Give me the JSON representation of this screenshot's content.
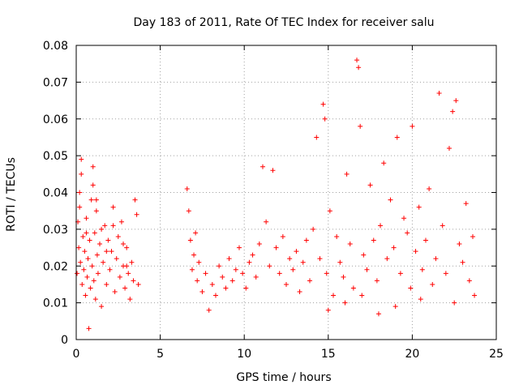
{
  "chart_data": {
    "type": "scatter",
    "title": "Day 183 of 2011, Rate Of TEC Index for receiver salu",
    "xlabel": "GPS time / hours",
    "ylabel": "ROTI / TECUs",
    "xlim": [
      0,
      25
    ],
    "ylim": [
      0,
      0.08
    ],
    "x_ticks": [
      "0",
      "5",
      "10",
      "15",
      "20",
      "25"
    ],
    "y_ticks": [
      "0",
      "0.01",
      "0.02",
      "0.03",
      "0.04",
      "0.05",
      "0.06",
      "0.07",
      "0.08"
    ],
    "grid": true,
    "marker": "plus",
    "color": "#ff0000",
    "series": [
      {
        "name": "",
        "points": [
          [
            0.05,
            0.018
          ],
          [
            0.1,
            0.032
          ],
          [
            0.15,
            0.025
          ],
          [
            0.2,
            0.036
          ],
          [
            0.25,
            0.021
          ],
          [
            0.3,
            0.045
          ],
          [
            0.35,
            0.015
          ],
          [
            0.4,
            0.028
          ],
          [
            0.45,
            0.019
          ],
          [
            0.5,
            0.024
          ],
          [
            0.55,
            0.012
          ],
          [
            0.6,
            0.033
          ],
          [
            0.65,
            0.017
          ],
          [
            0.7,
            0.022
          ],
          [
            0.75,
            0.003
          ],
          [
            0.8,
            0.027
          ],
          [
            0.85,
            0.014
          ],
          [
            0.9,
            0.038
          ],
          [
            0.95,
            0.02
          ],
          [
            1.0,
            0.047
          ],
          [
            1.05,
            0.016
          ],
          [
            1.1,
            0.029
          ],
          [
            1.15,
            0.011
          ],
          [
            1.2,
            0.035
          ],
          [
            1.25,
            0.023
          ],
          [
            1.3,
            0.018
          ],
          [
            1.4,
            0.026
          ],
          [
            1.5,
            0.009
          ],
          [
            1.6,
            0.021
          ],
          [
            1.7,
            0.031
          ],
          [
            1.8,
            0.015
          ],
          [
            1.9,
            0.027
          ],
          [
            2.0,
            0.019
          ],
          [
            2.1,
            0.024
          ],
          [
            2.2,
            0.036
          ],
          [
            2.3,
            0.013
          ],
          [
            2.4,
            0.022
          ],
          [
            2.5,
            0.028
          ],
          [
            2.6,
            0.017
          ],
          [
            2.7,
            0.032
          ],
          [
            2.8,
            0.02
          ],
          [
            2.9,
            0.014
          ],
          [
            3.0,
            0.025
          ],
          [
            3.1,
            0.018
          ],
          [
            3.2,
            0.011
          ],
          [
            3.3,
            0.021
          ],
          [
            3.4,
            0.016
          ],
          [
            3.5,
            0.038
          ],
          [
            3.6,
            0.034
          ],
          [
            3.7,
            0.015
          ],
          [
            0.3,
            0.049
          ],
          [
            1.0,
            0.042
          ],
          [
            1.2,
            0.038
          ],
          [
            0.6,
            0.029
          ],
          [
            2.2,
            0.031
          ],
          [
            3.0,
            0.02
          ],
          [
            1.5,
            0.03
          ],
          [
            0.2,
            0.04
          ],
          [
            2.8,
            0.026
          ],
          [
            1.8,
            0.024
          ],
          [
            6.6,
            0.041
          ],
          [
            6.7,
            0.035
          ],
          [
            6.8,
            0.027
          ],
          [
            6.9,
            0.019
          ],
          [
            7.0,
            0.023
          ],
          [
            7.1,
            0.029
          ],
          [
            7.2,
            0.016
          ],
          [
            7.3,
            0.021
          ],
          [
            7.5,
            0.013
          ],
          [
            7.7,
            0.018
          ],
          [
            7.9,
            0.008
          ],
          [
            8.1,
            0.015
          ],
          [
            8.3,
            0.012
          ],
          [
            8.5,
            0.02
          ],
          [
            8.7,
            0.017
          ],
          [
            8.9,
            0.014
          ],
          [
            9.1,
            0.022
          ],
          [
            9.3,
            0.016
          ],
          [
            9.5,
            0.019
          ],
          [
            9.7,
            0.025
          ],
          [
            9.9,
            0.018
          ],
          [
            10.1,
            0.014
          ],
          [
            10.3,
            0.021
          ],
          [
            10.5,
            0.023
          ],
          [
            10.7,
            0.017
          ],
          [
            10.9,
            0.026
          ],
          [
            11.1,
            0.047
          ],
          [
            11.3,
            0.032
          ],
          [
            11.5,
            0.02
          ],
          [
            11.7,
            0.046
          ],
          [
            11.9,
            0.025
          ],
          [
            12.1,
            0.018
          ],
          [
            12.3,
            0.028
          ],
          [
            12.5,
            0.015
          ],
          [
            12.7,
            0.022
          ],
          [
            12.9,
            0.019
          ],
          [
            13.1,
            0.024
          ],
          [
            13.3,
            0.013
          ],
          [
            13.5,
            0.021
          ],
          [
            13.7,
            0.027
          ],
          [
            13.9,
            0.016
          ],
          [
            14.1,
            0.03
          ],
          [
            14.3,
            0.055
          ],
          [
            14.5,
            0.022
          ],
          [
            14.7,
            0.064
          ],
          [
            14.8,
            0.06
          ],
          [
            14.9,
            0.018
          ],
          [
            15.1,
            0.035
          ],
          [
            15.3,
            0.012
          ],
          [
            15.5,
            0.028
          ],
          [
            15.7,
            0.021
          ],
          [
            15.9,
            0.017
          ],
          [
            16.1,
            0.045
          ],
          [
            16.3,
            0.026
          ],
          [
            16.5,
            0.014
          ],
          [
            16.7,
            0.076
          ],
          [
            16.8,
            0.074
          ],
          [
            16.9,
            0.058
          ],
          [
            17.1,
            0.023
          ],
          [
            17.3,
            0.019
          ],
          [
            17.5,
            0.042
          ],
          [
            17.7,
            0.027
          ],
          [
            17.9,
            0.016
          ],
          [
            18.1,
            0.031
          ],
          [
            18.3,
            0.048
          ],
          [
            18.5,
            0.022
          ],
          [
            18.7,
            0.038
          ],
          [
            18.9,
            0.025
          ],
          [
            19.1,
            0.055
          ],
          [
            19.3,
            0.018
          ],
          [
            19.5,
            0.033
          ],
          [
            19.7,
            0.029
          ],
          [
            19.9,
            0.014
          ],
          [
            20.0,
            0.058
          ],
          [
            20.2,
            0.024
          ],
          [
            20.4,
            0.036
          ],
          [
            20.6,
            0.019
          ],
          [
            20.8,
            0.027
          ],
          [
            21.0,
            0.041
          ],
          [
            21.2,
            0.015
          ],
          [
            21.4,
            0.022
          ],
          [
            21.6,
            0.067
          ],
          [
            21.8,
            0.031
          ],
          [
            22.0,
            0.018
          ],
          [
            22.2,
            0.052
          ],
          [
            22.4,
            0.062
          ],
          [
            22.6,
            0.065
          ],
          [
            22.8,
            0.026
          ],
          [
            23.0,
            0.021
          ],
          [
            23.2,
            0.037
          ],
          [
            23.4,
            0.016
          ],
          [
            23.6,
            0.028
          ],
          [
            23.7,
            0.012
          ],
          [
            15.0,
            0.008
          ],
          [
            16.0,
            0.01
          ],
          [
            17.0,
            0.012
          ],
          [
            18.0,
            0.007
          ],
          [
            19.0,
            0.009
          ],
          [
            20.5,
            0.011
          ],
          [
            22.5,
            0.01
          ]
        ]
      }
    ]
  }
}
